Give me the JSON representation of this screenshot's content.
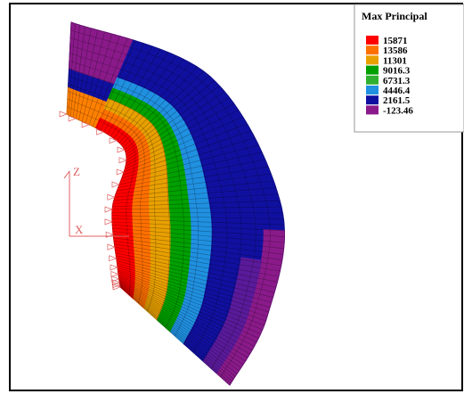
{
  "legend": {
    "title": "Max Principal",
    "values": [
      "15871",
      "13586",
      "11301",
      "9016.3",
      "6731.3",
      "4446.4",
      "2161.5",
      "-123.46"
    ]
  },
  "triad": {
    "z": "Z",
    "x": "X"
  }
}
